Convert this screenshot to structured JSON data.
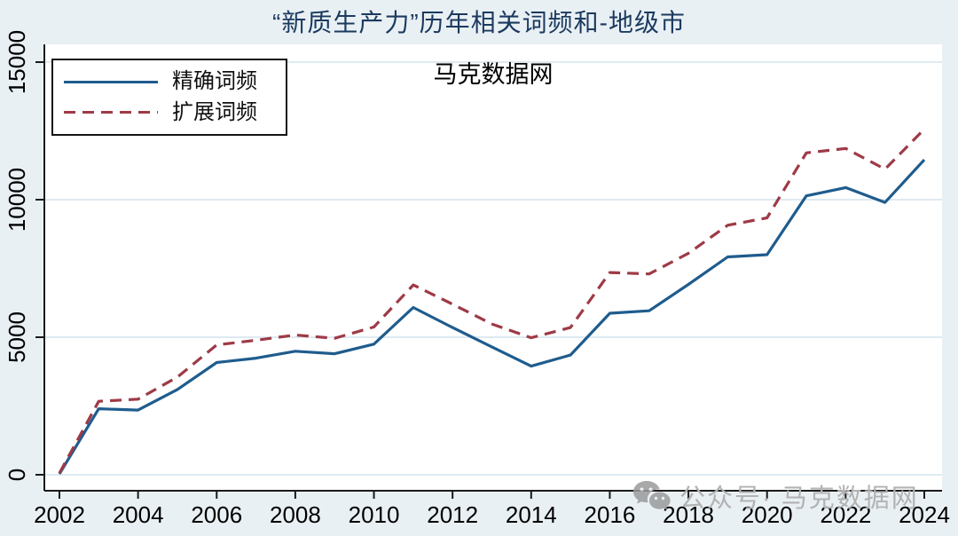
{
  "chart": {
    "title": "“新质生产力”历年相关词频和-地级市",
    "watermark_top": "马克数据网",
    "watermark_bottom": "公众号· 马克数据网"
  },
  "legend": {
    "items": [
      {
        "label": "精确词频",
        "style": "solid",
        "color": "#1f5c8d"
      },
      {
        "label": "扩展词频",
        "style": "dashed",
        "color": "#9e3a47"
      }
    ]
  },
  "chart_data": {
    "type": "line",
    "title": "“新质生产力”历年相关词频和-地级市",
    "x": [
      2002,
      2003,
      2004,
      2005,
      2006,
      2007,
      2008,
      2009,
      2010,
      2011,
      2012,
      2013,
      2014,
      2015,
      2016,
      2017,
      2018,
      2019,
      2020,
      2021,
      2022,
      2023,
      2024
    ],
    "series": [
      {
        "name": "精确词频",
        "style": "solid",
        "color": "#1f5c8d",
        "values": [
          30,
          2400,
          2350,
          3100,
          4080,
          4240,
          4490,
          4400,
          4750,
          6080,
          5350,
          4650,
          3950,
          4350,
          5870,
          5960,
          6920,
          7920,
          8000,
          10140,
          10440,
          9900,
          11450
        ]
      },
      {
        "name": "扩展词频",
        "style": "dashed",
        "color": "#9e3a47",
        "values": [
          60,
          2670,
          2750,
          3550,
          4720,
          4890,
          5080,
          4960,
          5370,
          6900,
          6200,
          5480,
          4980,
          5350,
          7350,
          7300,
          8050,
          9070,
          9340,
          11700,
          11860,
          11110,
          12560
        ]
      }
    ],
    "xlabel": "",
    "ylabel": "",
    "xlim": [
      2002,
      2024
    ],
    "ylim": [
      0,
      15000
    ],
    "y_ticks": [
      0,
      5000,
      10000,
      15000
    ],
    "x_ticks": [
      2002,
      2004,
      2006,
      2008,
      2010,
      2012,
      2014,
      2016,
      2018,
      2020,
      2022,
      2024
    ],
    "grid": "horizontal",
    "legend_position": "top-left"
  },
  "colors": {
    "background": "#e9f0f4",
    "plot_background": "#ffffff",
    "gridline": "#dfeaf1",
    "axis": "#1a1a1a",
    "title": "#1b3a5f",
    "watermark": "#b2b2b2",
    "wechat_icon": "#9b9b9b"
  }
}
